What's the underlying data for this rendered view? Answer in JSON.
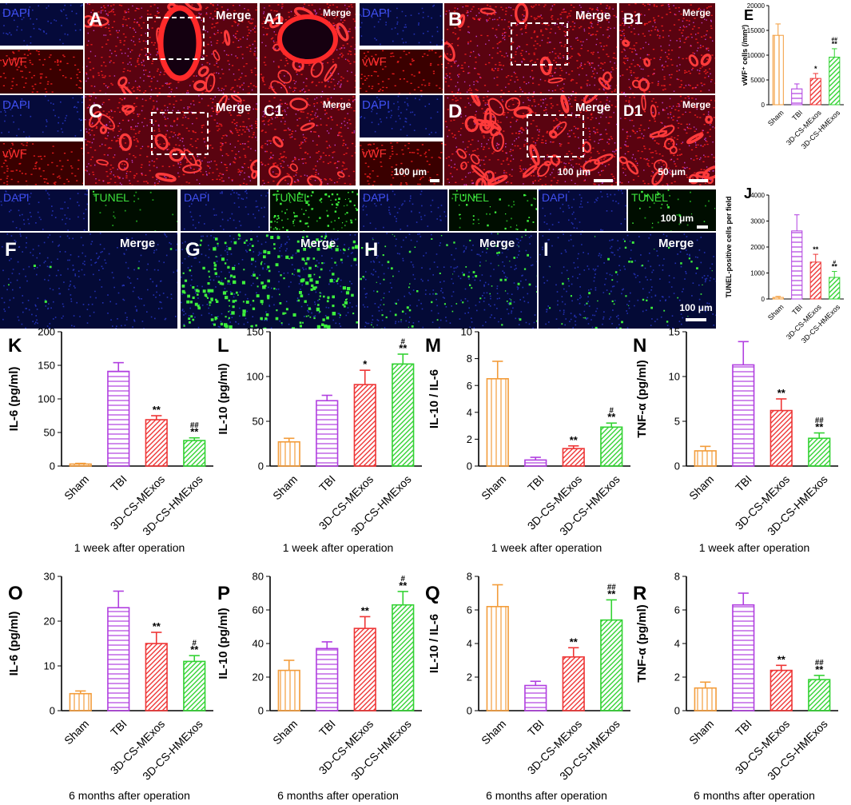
{
  "colors": {
    "sham": "#f39c3a",
    "tbi": "#b13fe0",
    "mexos": "#ee3535",
    "hmexos": "#33d233",
    "dapi": "#2a3bd6",
    "vwf": "#e11717",
    "tunel": "#38d838",
    "merge_label": "#ffffff"
  },
  "micrographs": {
    "channel_labels": {
      "dapi": "DAPI",
      "vwf": "vWF",
      "tunel": "TUNEL",
      "merge": "Merge"
    },
    "vwf_panels": [
      {
        "letter": "A",
        "zoom": "A1",
        "tissue": "vwf-vessel"
      },
      {
        "letter": "B",
        "zoom": "B1",
        "tissue": "vwf-sparse"
      },
      {
        "letter": "C",
        "zoom": "C1",
        "tissue": "vwf-medium"
      },
      {
        "letter": "D",
        "zoom": "D1",
        "tissue": "vwf-dense"
      }
    ],
    "tunel_panels": [
      {
        "letter": "F",
        "tunel_level": "low"
      },
      {
        "letter": "G",
        "tunel_level": "high"
      },
      {
        "letter": "H",
        "tunel_level": "medium"
      },
      {
        "letter": "I",
        "tunel_level": "low-medium"
      }
    ],
    "scalebars": {
      "small": "100 μm",
      "large": "100 μm",
      "zoom": "50 μm",
      "tunel_small": "100 μm",
      "tunel_large": "100 μm"
    }
  },
  "chart_data": [
    {
      "letter": "E",
      "type": "bar",
      "ylabel": "vWF⁺ cells (/mm²)",
      "xlabel": "",
      "categories": [
        "Sham",
        "TBI",
        "3D-CS-MExos",
        "3D-CS-HMExos"
      ],
      "values": [
        14000,
        3200,
        5300,
        9600
      ],
      "errors": [
        2300,
        1000,
        1000,
        1700
      ],
      "ylim": [
        0,
        20000
      ],
      "yticks": [
        0,
        5000,
        10000,
        15000,
        20000
      ],
      "sig": [
        "",
        "",
        "*",
        "**"
      ],
      "sig2": [
        "",
        "",
        "",
        "##"
      ]
    },
    {
      "letter": "J",
      "type": "bar",
      "ylabel": "TUNEL-positive cells per field",
      "xlabel": "",
      "categories": [
        "Sham",
        "TBI",
        "3D-CS-MExos",
        "3D-CS-HMExos"
      ],
      "values": [
        60,
        2620,
        1420,
        830
      ],
      "errors": [
        40,
        620,
        300,
        230
      ],
      "ylim": [
        0,
        4000
      ],
      "yticks": [
        0,
        1000,
        2000,
        3000,
        4000
      ],
      "sig": [
        "",
        "",
        "**",
        "**"
      ],
      "sig2": [
        "",
        "",
        "",
        "#"
      ]
    },
    {
      "letter": "K",
      "type": "bar",
      "ylabel": "IL-6 (pg/ml)",
      "xlabel": "1 week after operation",
      "categories": [
        "Sham",
        "TBI",
        "3D-CS-MExos",
        "3D-CS-HMExos"
      ],
      "values": [
        3,
        141,
        69,
        38
      ],
      "errors": [
        1,
        13,
        6,
        4
      ],
      "ylim": [
        0,
        200
      ],
      "yticks": [
        0,
        50,
        100,
        150,
        200
      ],
      "sig": [
        "",
        "",
        "**",
        "**"
      ],
      "sig2": [
        "",
        "",
        "",
        "##"
      ]
    },
    {
      "letter": "L",
      "type": "bar",
      "ylabel": "IL-10 (pg/ml)",
      "xlabel": "1 week after operation",
      "categories": [
        "Sham",
        "TBI",
        "3D-CS-MExos",
        "3D-CS-HMExos"
      ],
      "values": [
        27,
        73,
        91,
        114
      ],
      "errors": [
        4,
        6,
        16,
        11
      ],
      "ylim": [
        0,
        150
      ],
      "yticks": [
        0,
        50,
        100,
        150
      ],
      "sig": [
        "",
        "",
        "*",
        "**"
      ],
      "sig2": [
        "",
        "",
        "",
        "#"
      ]
    },
    {
      "letter": "M",
      "type": "bar",
      "ylabel": "IL-10 / IL-6",
      "xlabel": "1 week after operation",
      "categories": [
        "Sham",
        "TBI",
        "3D-CS-MExos",
        "3D-CS-HMExos"
      ],
      "values": [
        6.5,
        0.45,
        1.3,
        2.9
      ],
      "errors": [
        1.3,
        0.2,
        0.2,
        0.3
      ],
      "ylim": [
        0,
        10
      ],
      "yticks": [
        0,
        2,
        4,
        6,
        8,
        10
      ],
      "sig": [
        "",
        "",
        "**",
        "**"
      ],
      "sig2": [
        "",
        "",
        "",
        "#"
      ]
    },
    {
      "letter": "N",
      "type": "bar",
      "ylabel": "TNF-α (pg/ml)",
      "xlabel": "1 week after operation",
      "categories": [
        "Sham",
        "TBI",
        "3D-CS-MExos",
        "3D-CS-HMExos"
      ],
      "values": [
        1.7,
        11.3,
        6.2,
        3.1
      ],
      "errors": [
        0.5,
        2.6,
        1.3,
        0.6
      ],
      "ylim": [
        0,
        15
      ],
      "yticks": [
        0,
        5,
        10,
        15
      ],
      "sig": [
        "",
        "",
        "**",
        "**"
      ],
      "sig2": [
        "",
        "",
        "",
        "##"
      ]
    },
    {
      "letter": "O",
      "type": "bar",
      "ylabel": "IL-6 (pg/ml)",
      "xlabel": "6 months after operation",
      "categories": [
        "Sham",
        "TBI",
        "3D-CS-MExos",
        "3D-CS-HMExos"
      ],
      "values": [
        3.8,
        23,
        15,
        11
      ],
      "errors": [
        0.6,
        3.7,
        2.5,
        1.3
      ],
      "ylim": [
        0,
        30
      ],
      "yticks": [
        0,
        10,
        20,
        30
      ],
      "sig": [
        "",
        "",
        "**",
        "**"
      ],
      "sig2": [
        "",
        "",
        "",
        "#"
      ]
    },
    {
      "letter": "P",
      "type": "bar",
      "ylabel": "IL-10 (pg/ml)",
      "xlabel": "6 months after operation",
      "categories": [
        "Sham",
        "TBI",
        "3D-CS-MExos",
        "3D-CS-HMExos"
      ],
      "values": [
        24,
        37,
        49,
        63
      ],
      "errors": [
        6,
        4,
        7,
        8
      ],
      "ylim": [
        0,
        80
      ],
      "yticks": [
        0,
        20,
        40,
        60,
        80
      ],
      "sig": [
        "",
        "",
        "**",
        "**"
      ],
      "sig2": [
        "",
        "",
        "",
        "#"
      ]
    },
    {
      "letter": "Q",
      "type": "bar",
      "ylabel": "IL-10 / IL-6",
      "xlabel": "6 months after operation",
      "categories": [
        "Sham",
        "TBI",
        "3D-CS-MExos",
        "3D-CS-HMExos"
      ],
      "values": [
        6.2,
        1.5,
        3.2,
        5.4
      ],
      "errors": [
        1.3,
        0.25,
        0.55,
        1.2
      ],
      "ylim": [
        0,
        8
      ],
      "yticks": [
        0,
        2,
        4,
        6,
        8
      ],
      "sig": [
        "",
        "",
        "**",
        "**"
      ],
      "sig2": [
        "",
        "",
        "",
        "##"
      ]
    },
    {
      "letter": "R",
      "type": "bar",
      "ylabel": "TNF-α (pg/ml)",
      "xlabel": "6 months after operation",
      "categories": [
        "Sham",
        "TBI",
        "3D-CS-MExos",
        "3D-CS-HMExos"
      ],
      "values": [
        1.35,
        6.3,
        2.4,
        1.85
      ],
      "errors": [
        0.35,
        0.7,
        0.3,
        0.25
      ],
      "ylim": [
        0,
        8
      ],
      "yticks": [
        0,
        2,
        4,
        6,
        8
      ],
      "sig": [
        "",
        "",
        "**",
        "**"
      ],
      "sig2": [
        "",
        "",
        "",
        "##"
      ]
    }
  ]
}
